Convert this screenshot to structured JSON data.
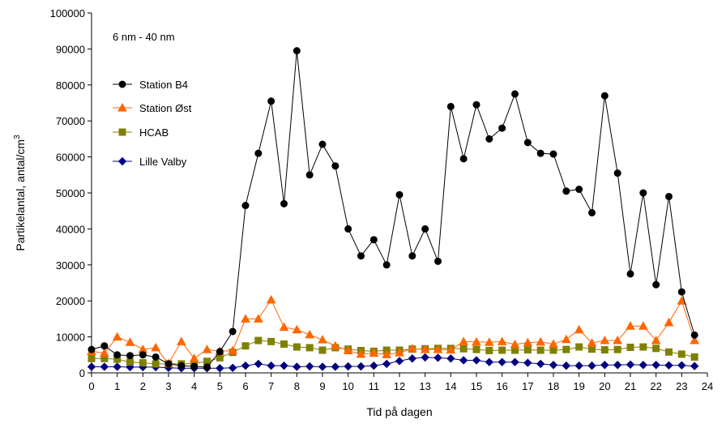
{
  "chart_data": {
    "type": "line",
    "annotation": "6 nm - 40 nm",
    "xlabel": "Tid på dagen",
    "ylabel_main": "Partikelantal, antal/cm",
    "ylabel_sup": "3",
    "xlim": [
      0,
      24
    ],
    "ylim": [
      0,
      100000
    ],
    "x_ticks": [
      "0",
      "1",
      "2",
      "3",
      "4",
      "5",
      "6",
      "7",
      "8",
      "9",
      "10",
      "11",
      "12",
      "13",
      "14",
      "15",
      "16",
      "17",
      "18",
      "19",
      "20",
      "21",
      "22",
      "23",
      "24"
    ],
    "y_ticks": [
      "0",
      "10000",
      "20000",
      "30000",
      "40000",
      "50000",
      "60000",
      "70000",
      "80000",
      "90000",
      "100000"
    ],
    "grid": false,
    "legend_position": "top-left",
    "x": [
      0,
      0.5,
      1,
      1.5,
      2,
      2.5,
      3,
      3.5,
      4,
      4.5,
      5,
      5.5,
      6,
      6.5,
      7,
      7.5,
      8,
      8.5,
      9,
      9.5,
      10,
      10.5,
      11,
      11.5,
      12,
      12.5,
      13,
      13.5,
      14,
      14.5,
      15,
      15.5,
      16,
      16.5,
      17,
      17.5,
      18,
      18.5,
      19,
      19.5,
      20,
      20.5,
      21,
      21.5,
      22,
      22.5,
      23,
      23.5
    ],
    "series": [
      {
        "name": "Station B4",
        "color": "#000000",
        "marker": "circle",
        "values": [
          6500,
          7500,
          5000,
          4800,
          5000,
          4400,
          2500,
          2000,
          1800,
          1600,
          5900,
          11500,
          46500,
          61000,
          75500,
          47000,
          89500,
          55000,
          63500,
          57500,
          40000,
          32500,
          37000,
          30000,
          49500,
          32500,
          40000,
          31000,
          74000,
          59500,
          74500,
          65000,
          68000,
          77500,
          64000,
          61000,
          60800,
          50500,
          51000,
          44500,
          77000,
          55500,
          27500,
          50000,
          24500,
          49000,
          22500,
          10500
        ]
      },
      {
        "name": "Station Øst",
        "color": "#ff6600",
        "marker": "triangle",
        "values": [
          6000,
          5500,
          10000,
          8500,
          6500,
          7000,
          2600,
          8700,
          4000,
          6500,
          6000,
          6200,
          15000,
          15000,
          20300,
          12700,
          12000,
          10600,
          9200,
          7500,
          6200,
          5200,
          5500,
          5100,
          5600,
          6700,
          6500,
          6500,
          6400,
          8700,
          8600,
          8500,
          8700,
          7900,
          8400,
          8600,
          8000,
          9300,
          12000,
          8300,
          9000,
          9000,
          13000,
          13000,
          9000,
          14000,
          20000,
          9000
        ]
      },
      {
        "name": "HCAB",
        "color": "#808000",
        "marker": "square",
        "values": [
          4000,
          4000,
          3800,
          3000,
          2800,
          2500,
          2500,
          2500,
          2600,
          3200,
          4200,
          5700,
          7500,
          9000,
          8700,
          8000,
          7200,
          7000,
          6300,
          7000,
          6600,
          6200,
          6000,
          6300,
          6300,
          6600,
          6700,
          6800,
          6800,
          6700,
          6500,
          6200,
          6300,
          6300,
          6400,
          6300,
          6300,
          6500,
          7200,
          6600,
          6400,
          6500,
          7100,
          7200,
          6800,
          5800,
          5200,
          4400
        ]
      },
      {
        "name": "Lille Valby",
        "color": "#000080",
        "marker": "diamond",
        "values": [
          1700,
          1700,
          1700,
          1600,
          1600,
          1600,
          1400,
          1300,
          1300,
          1300,
          1300,
          1400,
          2000,
          2500,
          2000,
          2000,
          1700,
          1800,
          1700,
          1700,
          1800,
          1800,
          2000,
          2500,
          3300,
          4000,
          4300,
          4200,
          4000,
          3500,
          3500,
          3000,
          3000,
          3000,
          2800,
          2500,
          2200,
          2000,
          2000,
          2000,
          2200,
          2200,
          2300,
          2200,
          2200,
          2100,
          2100,
          1900
        ]
      }
    ]
  }
}
